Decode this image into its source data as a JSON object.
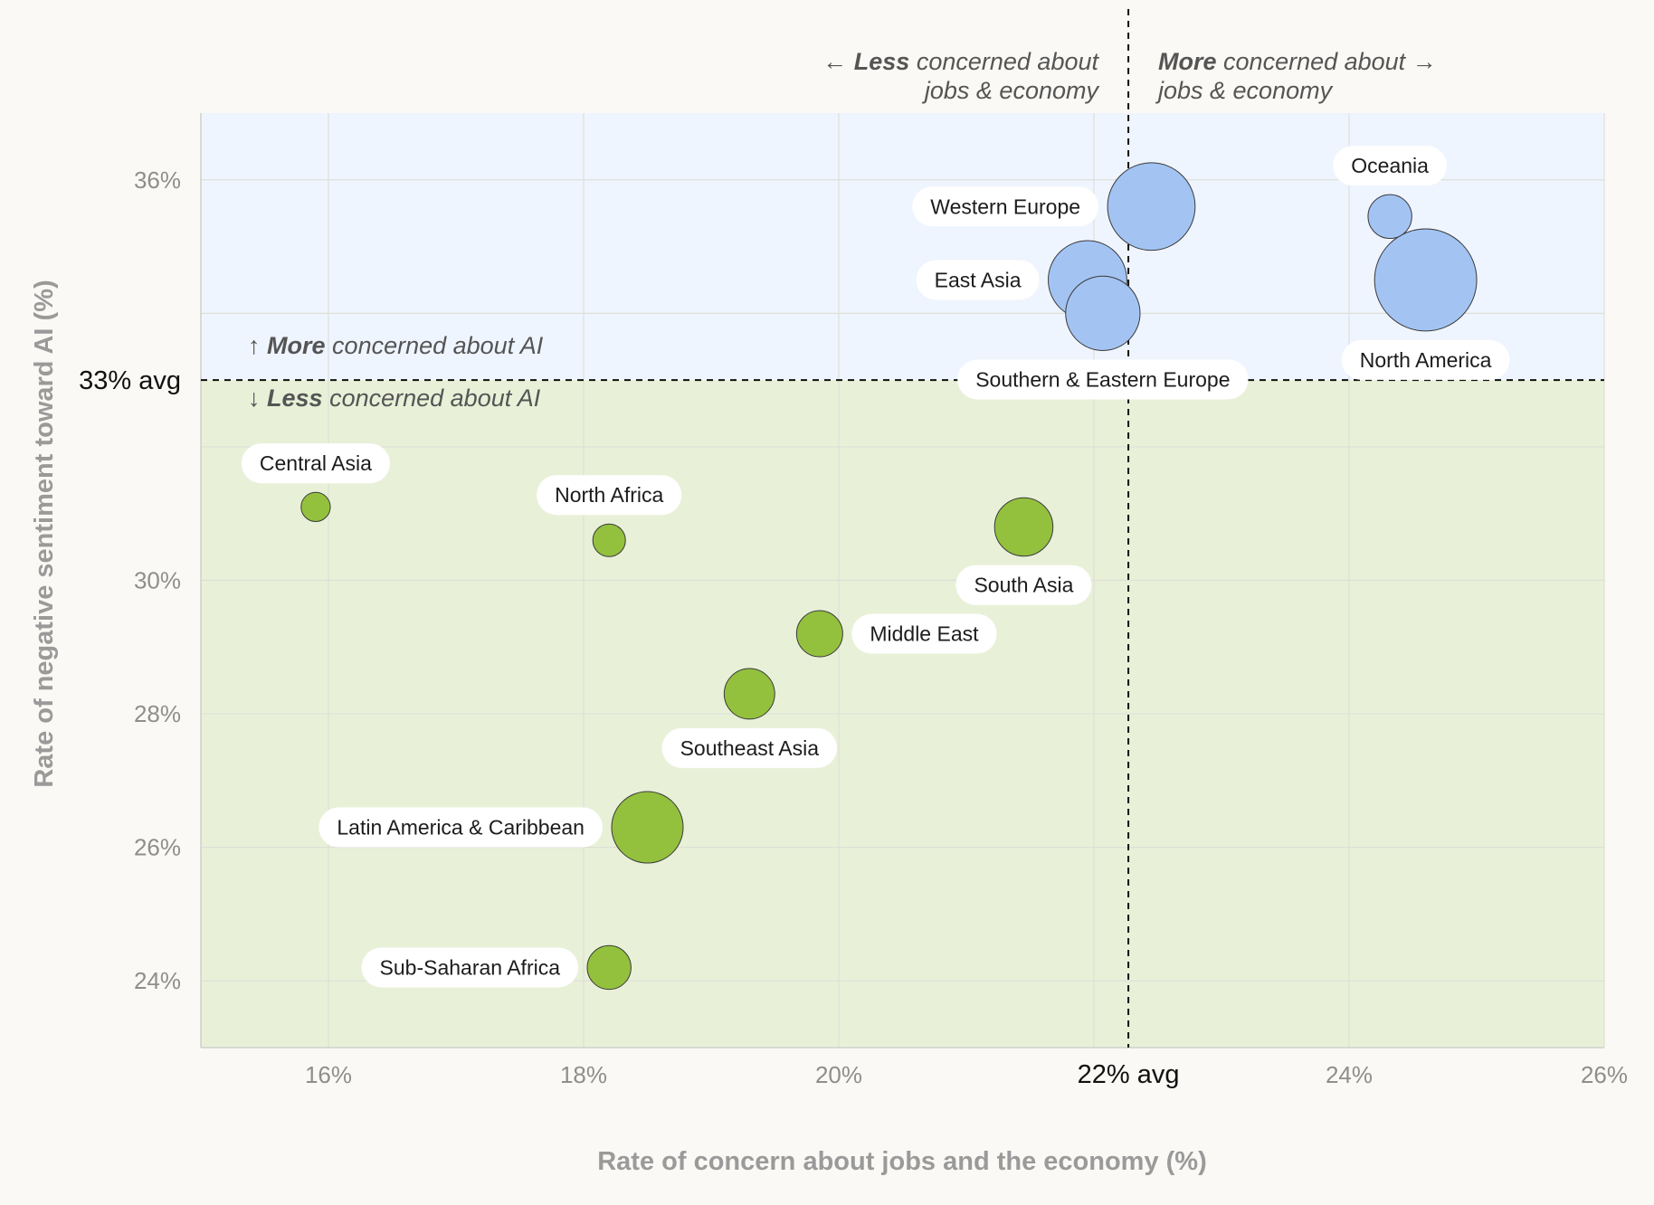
{
  "chart_data": {
    "type": "scatter",
    "xlabel": "Rate of concern about jobs and the economy (%)",
    "ylabel": "Rate of negative sentiment toward AI (%)",
    "xlim": [
      15,
      26
    ],
    "ylim": [
      23,
      37
    ],
    "x_ticks": [
      "16%",
      "18%",
      "20%",
      "24%",
      "26%"
    ],
    "y_ticks": [
      "24%",
      "26%",
      "28%",
      "30%",
      "36%"
    ],
    "x_tick_values": [
      16,
      18,
      20,
      24,
      26
    ],
    "y_tick_values": [
      24,
      26,
      28,
      30,
      36
    ],
    "x_avg": 22.27,
    "y_avg": 33.0,
    "x_avg_label": "22% avg",
    "y_avg_label": "33% avg",
    "grid": true,
    "annotations": {
      "top_left": {
        "arrow": "←",
        "bold": "Less",
        "rest": "concerned about",
        "line2": "jobs & economy"
      },
      "top_right": {
        "arrow": "→",
        "bold": "More",
        "rest": "concerned about",
        "line2": "jobs & economy"
      },
      "upper": {
        "arrow": "↑",
        "bold": "More",
        "rest": "concerned about AI"
      },
      "lower": {
        "arrow": "↓",
        "bold": "Less",
        "rest": "concerned about AI"
      }
    },
    "colors": {
      "above_avg_fill": "#a3c4f3",
      "below_avg_fill": "#93c13e",
      "upper_region": "#eff5fe",
      "lower_region": "#e8f1d8",
      "background": "#faf9f5"
    },
    "points": [
      {
        "label": "Western Europe",
        "x": 22.45,
        "y": 35.6,
        "size": 3.6,
        "group": "above"
      },
      {
        "label": "Oceania",
        "x": 24.32,
        "y": 35.45,
        "size": 0.9,
        "group": "above"
      },
      {
        "label": "East Asia",
        "x": 21.95,
        "y": 34.5,
        "size": 2.9,
        "group": "above"
      },
      {
        "label": "North America",
        "x": 24.6,
        "y": 34.5,
        "size": 4.9,
        "group": "above"
      },
      {
        "label": "Southern & Eastern Europe",
        "x": 22.07,
        "y": 34.0,
        "size": 2.6,
        "group": "above"
      },
      {
        "label": "Central Asia",
        "x": 15.9,
        "y": 31.1,
        "size": 0.4,
        "group": "below"
      },
      {
        "label": "North Africa",
        "x": 18.2,
        "y": 30.6,
        "size": 0.5,
        "group": "below"
      },
      {
        "label": "South Asia",
        "x": 21.45,
        "y": 30.8,
        "size": 1.6,
        "group": "below"
      },
      {
        "label": "Middle East",
        "x": 19.85,
        "y": 29.2,
        "size": 1.0,
        "group": "below"
      },
      {
        "label": "Southeast Asia",
        "x": 19.3,
        "y": 28.3,
        "size": 1.2,
        "group": "below"
      },
      {
        "label": "Latin America & Caribbean",
        "x": 18.5,
        "y": 26.3,
        "size": 2.4,
        "group": "below"
      },
      {
        "label": "Sub-Saharan Africa",
        "x": 18.2,
        "y": 24.2,
        "size": 0.9,
        "group": "below"
      }
    ]
  }
}
